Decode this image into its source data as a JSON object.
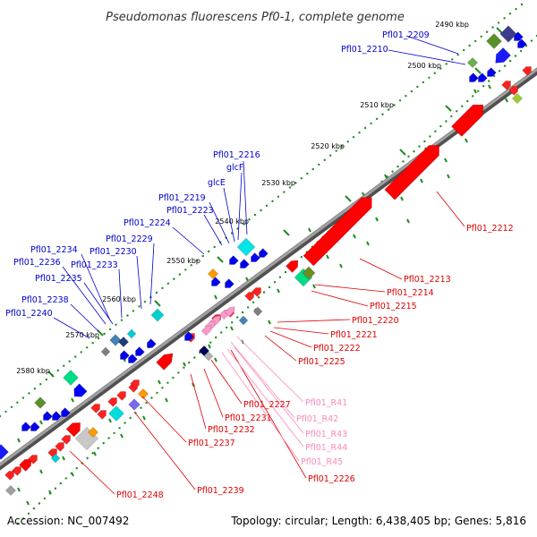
{
  "title": "Pseudomonas fluorescens Pf0-1, complete genome",
  "footer": {
    "accession": "Accession: NC_007492",
    "summary": "Topology: circular; Length: 6,438,405 bp; Genes: 5,816"
  },
  "colors": {
    "backbone": "#808080",
    "forward_genes": "#ff0000",
    "reverse_genes": "#0000ff",
    "trna": "#ff99cc",
    "tick": "#228b22"
  },
  "ticks": [
    {
      "label": "2490 kbp"
    },
    {
      "label": "2500 kbp"
    },
    {
      "label": "2510 kbp"
    },
    {
      "label": "2520 kbp"
    },
    {
      "label": "2530 kbp"
    },
    {
      "label": "2540 kbp"
    },
    {
      "label": "2550 kbp"
    },
    {
      "label": "2560 kbp"
    },
    {
      "label": "2570 kbp"
    },
    {
      "label": "2580 kbp"
    }
  ],
  "labels_blue": [
    "Pfl01_2209",
    "Pfl01_2210",
    "Pfl01_2216",
    "glcF",
    "glcE",
    "Pfl01_2219",
    "Pfl01_2223",
    "Pfl01_2224",
    "Pfl01_2229",
    "Pfl01_2234",
    "Pfl01_2230",
    "Pfl01_2236",
    "Pfl01_2233",
    "Pfl01_2235",
    "Pfl01_2238",
    "Pfl01_2240"
  ],
  "labels_red": [
    "Pfl01_2212",
    "Pfl01_2213",
    "Pfl01_2214",
    "Pfl01_2215",
    "Pfl01_2220",
    "Pfl01_2221",
    "Pfl01_2222",
    "Pfl01_2225",
    "Pfl01_2227",
    "Pfl01_2231",
    "Pfl01_2232",
    "Pfl01_2237",
    "Pfl01_2226",
    "Pfl01_2239",
    "Pfl01_2248"
  ],
  "labels_pink": [
    "Pfl01_R41",
    "Pfl01_R42",
    "Pfl01_R43",
    "Pfl01_R44",
    "Pfl01_R45"
  ]
}
